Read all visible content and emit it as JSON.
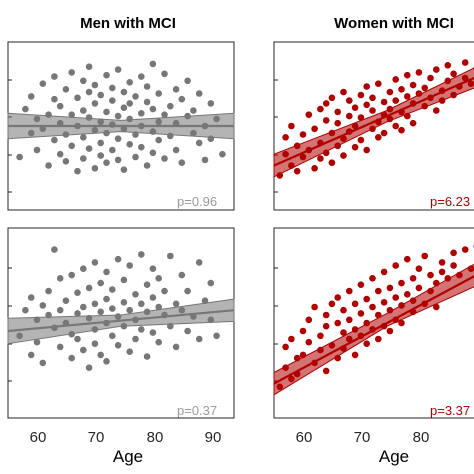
{
  "chart_data": [
    {
      "type": "scatter",
      "title": "Men with MCI",
      "xlabel": "",
      "pvalue": "p=0.96",
      "color": "#777777",
      "fit": {
        "x": [
          55,
          94
        ],
        "y": [
          0.5,
          0.5
        ],
        "ci_low_ends": [
          0.41,
          0.41
        ],
        "ci_high_ends": [
          0.59,
          0.59
        ],
        "ci_low_mid": 0.46,
        "ci_high_mid": 0.54
      },
      "x": [
        57,
        58,
        59,
        59,
        60,
        60,
        61,
        61,
        62,
        62,
        63,
        63,
        63,
        64,
        64,
        64,
        65,
        65,
        65,
        66,
        66,
        66,
        67,
        67,
        67,
        68,
        68,
        68,
        68,
        69,
        69,
        69,
        69,
        70,
        70,
        70,
        70,
        71,
        71,
        71,
        71,
        72,
        72,
        72,
        72,
        73,
        73,
        73,
        73,
        74,
        74,
        74,
        74,
        75,
        75,
        75,
        75,
        76,
        76,
        76,
        76,
        77,
        77,
        77,
        78,
        78,
        78,
        78,
        79,
        79,
        79,
        80,
        80,
        80,
        80,
        81,
        81,
        81,
        82,
        82,
        82,
        83,
        83,
        84,
        84,
        84,
        85,
        85,
        86,
        86,
        87,
        87,
        88,
        88,
        89,
        89,
        90,
        90,
        91,
        92
      ],
      "y": [
        0.28,
        0.62,
        0.45,
        0.71,
        0.55,
        0.33,
        0.8,
        0.48,
        0.58,
        0.22,
        0.69,
        0.4,
        0.85,
        0.52,
        0.3,
        0.64,
        0.76,
        0.44,
        0.25,
        0.58,
        0.88,
        0.36,
        0.5,
        0.7,
        0.18,
        0.61,
        0.42,
        0.82,
        0.27,
        0.56,
        0.74,
        0.34,
        0.92,
        0.47,
        0.66,
        0.2,
        0.79,
        0.53,
        0.38,
        0.72,
        0.29,
        0.6,
        0.45,
        0.86,
        0.24,
        0.51,
        0.68,
        0.33,
        0.77,
        0.57,
        0.41,
        0.9,
        0.26,
        0.63,
        0.48,
        0.74,
        0.19,
        0.55,
        0.81,
        0.37,
        0.66,
        0.44,
        0.71,
        0.28,
        0.59,
        0.85,
        0.35,
        0.5,
        0.67,
        0.22,
        0.78,
        0.46,
        0.62,
        0.31,
        0.94,
        0.53,
        0.73,
        0.4,
        0.58,
        0.87,
        0.27,
        0.64,
        0.43,
        0.76,
        0.52,
        0.33,
        0.69,
        0.24,
        0.57,
        0.82,
        0.45,
        0.61,
        0.38,
        0.73,
        0.5,
        0.26,
        0.66,
        0.41,
        0.55,
        0.3
      ],
      "xlim": [
        55,
        94
      ]
    },
    {
      "type": "scatter",
      "title": "Women with MCI",
      "xlabel": "",
      "pvalue": "p=6.23",
      "color": "#b00000",
      "fit": {
        "x": [
          55,
          94
        ],
        "y": [
          0.22,
          0.92
        ],
        "ci_low_ends": [
          0.14,
          0.84
        ],
        "ci_high_ends": [
          0.3,
          1.0
        ],
        "ci_low_mid": 0.53,
        "ci_high_mid": 0.61
      },
      "x": [
        56,
        57,
        57,
        58,
        58,
        59,
        59,
        60,
        60,
        61,
        61,
        62,
        62,
        63,
        63,
        63,
        64,
        64,
        64,
        65,
        65,
        65,
        66,
        66,
        66,
        67,
        67,
        67,
        68,
        68,
        68,
        69,
        69,
        69,
        70,
        70,
        70,
        71,
        71,
        71,
        72,
        72,
        72,
        73,
        73,
        73,
        74,
        74,
        74,
        75,
        75,
        75,
        76,
        76,
        76,
        77,
        77,
        77,
        78,
        78,
        78,
        79,
        79,
        79,
        80,
        80,
        81,
        81,
        82,
        82,
        83,
        83,
        84,
        84,
        85,
        85,
        86,
        86,
        87,
        88,
        88,
        89,
        90,
        91,
        92,
        93
      ],
      "y": [
        0.15,
        0.3,
        0.42,
        0.22,
        0.5,
        0.18,
        0.36,
        0.44,
        0.28,
        0.58,
        0.33,
        0.48,
        0.2,
        0.62,
        0.38,
        0.27,
        0.54,
        0.31,
        0.66,
        0.45,
        0.24,
        0.7,
        0.52,
        0.36,
        0.6,
        0.41,
        0.74,
        0.29,
        0.57,
        0.46,
        0.68,
        0.35,
        0.63,
        0.5,
        0.72,
        0.4,
        0.56,
        0.65,
        0.33,
        0.78,
        0.48,
        0.61,
        0.7,
        0.53,
        0.42,
        0.8,
        0.58,
        0.67,
        0.45,
        0.74,
        0.55,
        0.62,
        0.83,
        0.5,
        0.68,
        0.6,
        0.76,
        0.47,
        0.71,
        0.86,
        0.57,
        0.66,
        0.79,
        0.52,
        0.73,
        0.88,
        0.64,
        0.77,
        0.7,
        0.84,
        0.61,
        0.9,
        0.75,
        0.68,
        0.82,
        0.93,
        0.72,
        0.87,
        0.78,
        0.95,
        0.84,
        0.8,
        0.91,
        0.86,
        0.97,
        0.99
      ],
      "xlim": [
        55,
        94
      ]
    },
    {
      "type": "scatter",
      "title": "",
      "xlabel": "Age",
      "pvalue": "p=0.37",
      "color": "#777777",
      "fit": {
        "x": [
          55,
          94
        ],
        "y": [
          0.45,
          0.58
        ],
        "ci_low_ends": [
          0.37,
          0.51
        ],
        "ci_high_ends": [
          0.53,
          0.65
        ],
        "ci_low_mid": 0.48,
        "ci_high_mid": 0.55
      },
      "x": [
        57,
        58,
        59,
        59,
        60,
        60,
        61,
        61,
        62,
        62,
        63,
        63,
        64,
        64,
        64,
        65,
        65,
        66,
        66,
        66,
        67,
        67,
        67,
        68,
        68,
        68,
        69,
        69,
        69,
        70,
        70,
        70,
        70,
        71,
        71,
        71,
        72,
        72,
        72,
        72,
        73,
        73,
        73,
        74,
        74,
        74,
        75,
        75,
        75,
        76,
        76,
        76,
        77,
        77,
        77,
        78,
        78,
        78,
        79,
        79,
        79,
        80,
        80,
        80,
        81,
        81,
        81,
        82,
        82,
        83,
        83,
        84,
        84,
        85,
        85,
        86,
        86,
        87,
        88,
        88,
        89,
        90,
        90,
        91
      ],
      "y": [
        0.42,
        0.58,
        0.3,
        0.66,
        0.52,
        0.38,
        0.61,
        0.25,
        0.55,
        0.7,
        0.47,
        0.96,
        0.58,
        0.35,
        0.78,
        0.5,
        0.64,
        0.43,
        0.8,
        0.28,
        0.56,
        0.69,
        0.4,
        0.6,
        0.84,
        0.33,
        0.53,
        0.72,
        0.22,
        0.62,
        0.46,
        0.88,
        0.37,
        0.57,
        0.75,
        0.3,
        0.65,
        0.5,
        0.82,
        0.26,
        0.59,
        0.42,
        0.71,
        0.54,
        0.9,
        0.36,
        0.63,
        0.48,
        0.77,
        0.58,
        0.32,
        0.86,
        0.52,
        0.68,
        0.4,
        0.62,
        0.93,
        0.46,
        0.57,
        0.74,
        0.29,
        0.66,
        0.84,
        0.44,
        0.6,
        0.38,
        0.78,
        0.55,
        0.7,
        0.48,
        0.92,
        0.62,
        0.35,
        0.58,
        0.8,
        0.45,
        0.7,
        0.54,
        0.88,
        0.4,
        0.64,
        0.52,
        0.75,
        0.42
      ],
      "xlim": [
        55,
        94
      ]
    },
    {
      "type": "scatter",
      "title": "",
      "xlabel": "Age",
      "pvalue": "p=3.37",
      "color": "#b00000",
      "fit": {
        "x": [
          55,
          94
        ],
        "y": [
          0.12,
          0.88
        ],
        "ci_low_ends": [
          0.05,
          0.8
        ],
        "ci_high_ends": [
          0.19,
          0.96
        ],
        "ci_low_mid": 0.48,
        "ci_high_mid": 0.56
      },
      "x": [
        56,
        57,
        57,
        58,
        58,
        59,
        59,
        60,
        60,
        61,
        61,
        62,
        62,
        63,
        63,
        64,
        64,
        64,
        65,
        65,
        66,
        66,
        66,
        67,
        67,
        67,
        68,
        68,
        68,
        69,
        69,
        69,
        70,
        70,
        70,
        71,
        71,
        71,
        72,
        72,
        72,
        73,
        73,
        73,
        74,
        74,
        74,
        75,
        75,
        75,
        76,
        76,
        76,
        77,
        77,
        77,
        78,
        78,
        79,
        79,
        79,
        80,
        80,
        81,
        81,
        82,
        82,
        83,
        83,
        84,
        84,
        85,
        86,
        86,
        87,
        88,
        89,
        90,
        91,
        92
      ],
      "y": [
        0.1,
        0.22,
        0.35,
        0.15,
        0.4,
        0.28,
        0.18,
        0.45,
        0.3,
        0.38,
        0.52,
        0.25,
        0.6,
        0.42,
        0.33,
        0.55,
        0.2,
        0.48,
        0.62,
        0.36,
        0.5,
        0.28,
        0.66,
        0.44,
        0.58,
        0.34,
        0.52,
        0.7,
        0.4,
        0.46,
        0.62,
        0.3,
        0.56,
        0.74,
        0.42,
        0.5,
        0.65,
        0.37,
        0.6,
        0.78,
        0.46,
        0.55,
        0.7,
        0.4,
        0.63,
        0.48,
        0.82,
        0.58,
        0.72,
        0.45,
        0.66,
        0.52,
        0.86,
        0.61,
        0.75,
        0.5,
        0.68,
        0.9,
        0.57,
        0.78,
        0.64,
        0.72,
        0.84,
        0.62,
        0.92,
        0.7,
        0.8,
        0.75,
        0.6,
        0.88,
        0.82,
        0.78,
        0.86,
        0.94,
        0.8,
        0.96,
        0.84,
        0.98,
        0.9,
        0.99
      ],
      "xlim": [
        55,
        94
      ]
    }
  ],
  "axes": {
    "x_ticks_left": [
      "60",
      "70",
      "80",
      "90"
    ],
    "x_ticks_right": [
      "60",
      "70",
      "80"
    ],
    "xlabel": "Age"
  }
}
